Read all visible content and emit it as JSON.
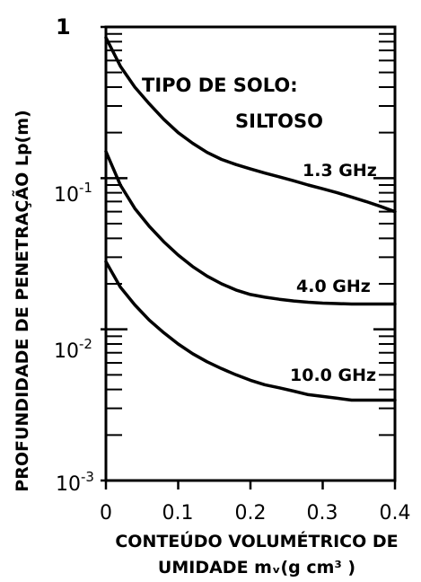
{
  "chart_data": {
    "type": "line",
    "title": "",
    "annotation_lines": [
      "TIPO DE SOLO:",
      "SILTOSO"
    ],
    "xlabel_lines": [
      "CONTEÚDO VOLUMÉTRICO DE",
      "UMIDADE mᵥ(g cm³ )"
    ],
    "ylabel": "PROFUNDIDADE DE PENETRAÇÃO Lp(m)",
    "y_scale": "log",
    "xlim": [
      0,
      0.4
    ],
    "ylim": [
      0.001,
      1
    ],
    "x_ticks": [
      0,
      0.1,
      0.2,
      0.3,
      0.4
    ],
    "x_tick_labels": [
      "0",
      "0.1",
      "0.2",
      "0.3",
      "0.4"
    ],
    "y_ticks": [
      1,
      0.1,
      0.01,
      0.001
    ],
    "y_tick_labels": [
      {
        "base": "1",
        "exp": ""
      },
      {
        "base": "10",
        "exp": "-1"
      },
      {
        "base": "10",
        "exp": "-2"
      },
      {
        "base": "10",
        "exp": "-3"
      }
    ],
    "grid": false,
    "series": [
      {
        "name": "1.3 GHz",
        "x": [
          0,
          0.02,
          0.04,
          0.06,
          0.08,
          0.1,
          0.12,
          0.14,
          0.16,
          0.18,
          0.2,
          0.22,
          0.24,
          0.26,
          0.28,
          0.3,
          0.32,
          0.34,
          0.36,
          0.38,
          0.4
        ],
        "y": [
          0.85,
          0.55,
          0.4,
          0.31,
          0.245,
          0.2,
          0.17,
          0.148,
          0.133,
          0.123,
          0.115,
          0.108,
          0.102,
          0.096,
          0.09,
          0.085,
          0.08,
          0.075,
          0.07,
          0.065,
          0.06
        ]
      },
      {
        "name": "4.0 GHz",
        "x": [
          0,
          0.02,
          0.04,
          0.06,
          0.08,
          0.1,
          0.12,
          0.14,
          0.16,
          0.18,
          0.2,
          0.22,
          0.24,
          0.26,
          0.28,
          0.3,
          0.32,
          0.34,
          0.36,
          0.38,
          0.4
        ],
        "y": [
          0.15,
          0.09,
          0.063,
          0.048,
          0.038,
          0.031,
          0.026,
          0.0225,
          0.02,
          0.0182,
          0.017,
          0.0163,
          0.0158,
          0.0154,
          0.0151,
          0.0149,
          0.0148,
          0.0147,
          0.0147,
          0.0147,
          0.0147
        ]
      },
      {
        "name": "10.0 GHz",
        "x": [
          0,
          0.02,
          0.04,
          0.06,
          0.08,
          0.1,
          0.12,
          0.14,
          0.16,
          0.18,
          0.2,
          0.22,
          0.24,
          0.26,
          0.28,
          0.3,
          0.32,
          0.34,
          0.36,
          0.38,
          0.4
        ],
        "y": [
          0.028,
          0.019,
          0.0145,
          0.0115,
          0.0095,
          0.008,
          0.0069,
          0.0061,
          0.0055,
          0.005,
          0.0046,
          0.0043,
          0.0041,
          0.0039,
          0.0037,
          0.0036,
          0.0035,
          0.0034,
          0.0034,
          0.0034,
          0.0034
        ]
      }
    ],
    "series_label_text": [
      "1.3 GHz",
      "4.0 GHz",
      "10.0 GHz"
    ]
  }
}
